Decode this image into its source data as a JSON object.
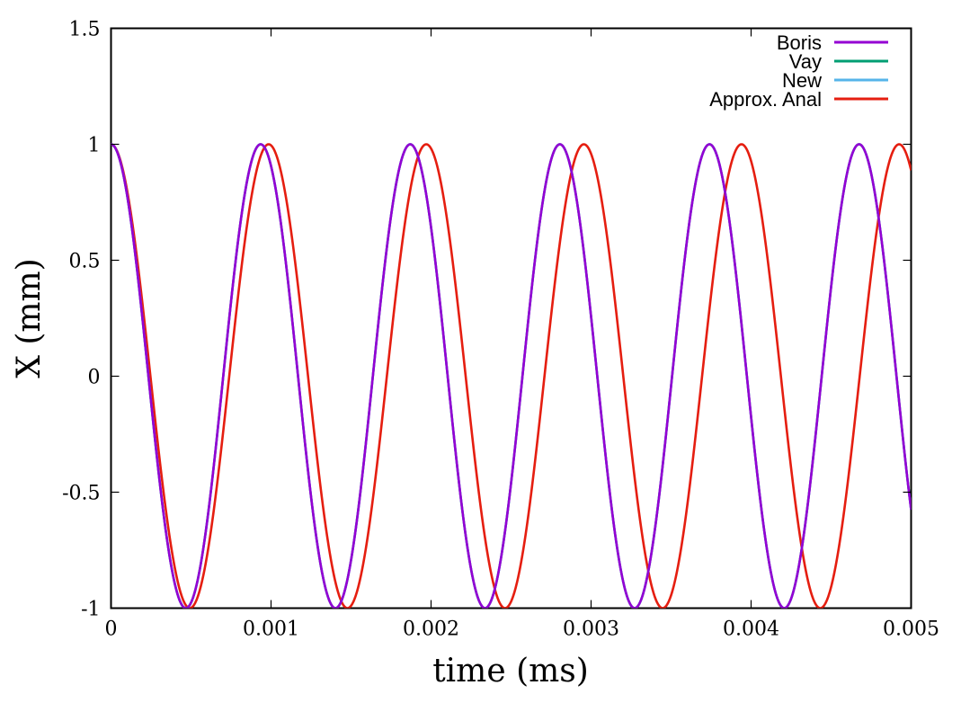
{
  "chart_data": {
    "type": "line",
    "xlabel": "time (ms)",
    "ylabel": "X (mm)",
    "xlim": [
      0,
      0.005
    ],
    "ylim": [
      -1,
      1.5
    ],
    "xticks": [
      "0",
      "0.001",
      "0.002",
      "0.003",
      "0.004",
      "0.005"
    ],
    "yticks": [
      "-1",
      "-0.5",
      "0",
      "0.5",
      "1",
      "1.5"
    ],
    "grid": false,
    "legend_position": "top-right",
    "series": [
      {
        "name": "Boris",
        "color": "#9400d3",
        "function": "cosine",
        "amplitude": 1,
        "period_ms": 0.000935,
        "phase": 0
      },
      {
        "name": "Vay",
        "color": "#009e73",
        "function": "cosine",
        "amplitude": 1,
        "period_ms": 0.000935,
        "phase": 0
      },
      {
        "name": "New",
        "color": "#56b4e9",
        "function": "cosine",
        "amplitude": 1,
        "period_ms": 0.000935,
        "phase": 0
      },
      {
        "name": "Approx. Anal",
        "color": "#e51e10",
        "function": "cosine",
        "amplitude": 1,
        "period_ms": 0.000985,
        "phase": 0
      }
    ]
  }
}
